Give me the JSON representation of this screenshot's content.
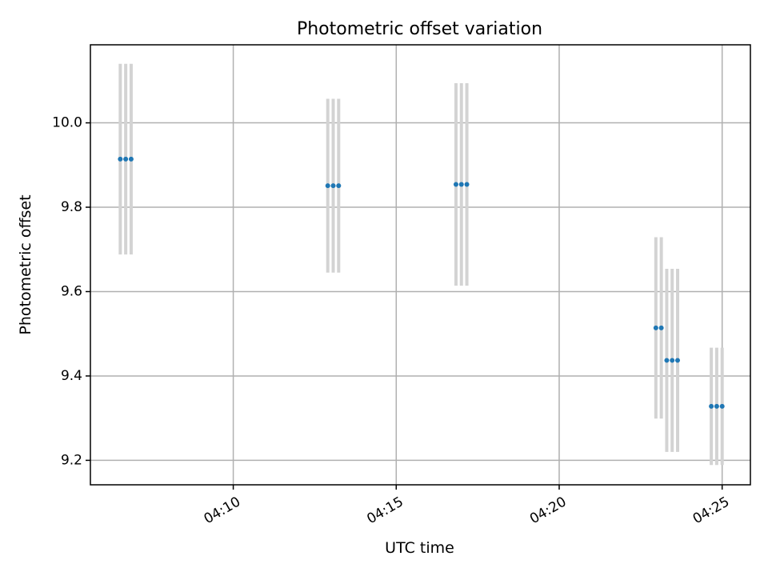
{
  "chart_data": {
    "type": "scatter",
    "title": "Photometric offset variation",
    "xlabel": "UTC time",
    "ylabel": "Photometric offset",
    "xlim": [
      "04:05:37",
      "04:25:52"
    ],
    "ylim": [
      9.142,
      10.185
    ],
    "x_ticks": [
      "04:10",
      "04:15",
      "04:20",
      "04:25"
    ],
    "y_ticks": [
      "9.2",
      "9.4",
      "9.6",
      "9.8",
      "10.0"
    ],
    "grid": true,
    "marker_color": "#1f77b4",
    "errorbar_color": "#d3d3d3",
    "points": [
      {
        "x": "04:06:32",
        "y": 9.914,
        "yerr": 0.226
      },
      {
        "x": "04:06:42",
        "y": 9.914,
        "yerr": 0.226
      },
      {
        "x": "04:06:52",
        "y": 9.914,
        "yerr": 0.226
      },
      {
        "x": "04:12:54",
        "y": 9.851,
        "yerr": 0.206
      },
      {
        "x": "04:13:04",
        "y": 9.851,
        "yerr": 0.206
      },
      {
        "x": "04:13:14",
        "y": 9.851,
        "yerr": 0.206
      },
      {
        "x": "04:16:50",
        "y": 9.854,
        "yerr": 0.24
      },
      {
        "x": "04:17:00",
        "y": 9.854,
        "yerr": 0.24
      },
      {
        "x": "04:17:10",
        "y": 9.854,
        "yerr": 0.24
      },
      {
        "x": "04:22:58",
        "y": 9.514,
        "yerr": 0.215
      },
      {
        "x": "04:23:08",
        "y": 9.514,
        "yerr": 0.215
      },
      {
        "x": "04:23:18",
        "y": 9.437,
        "yerr": 0.217
      },
      {
        "x": "04:23:28",
        "y": 9.437,
        "yerr": 0.217
      },
      {
        "x": "04:23:38",
        "y": 9.437,
        "yerr": 0.217
      },
      {
        "x": "04:24:40",
        "y": 9.328,
        "yerr": 0.139
      },
      {
        "x": "04:24:50",
        "y": 9.328,
        "yerr": 0.139
      },
      {
        "x": "04:25:00",
        "y": 9.328,
        "yerr": 0.139
      }
    ]
  }
}
